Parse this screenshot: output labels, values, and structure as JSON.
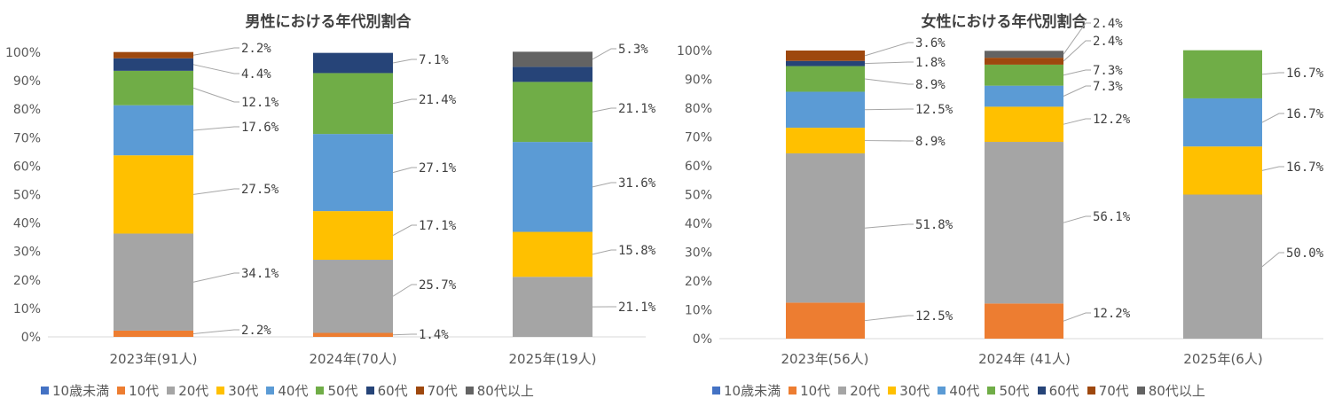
{
  "series_names": [
    "10歳未満",
    "10代",
    "20代",
    "30代",
    "40代",
    "50代",
    "60代",
    "70代",
    "80代以上"
  ],
  "colors": [
    "#4472C4",
    "#ED7D31",
    "#A5A5A5",
    "#FFC000",
    "#5B9BD5",
    "#70AD47",
    "#264478",
    "#9E480E",
    "#636363"
  ],
  "chart_data": [
    {
      "type": "bar",
      "stacked": true,
      "title": "男性における年代別割合",
      "categories": [
        "2023年(91人)",
        "2024年(70人)",
        "2025年(19人)"
      ],
      "ylim": [
        0,
        100
      ],
      "y_ticks": [
        "0%",
        "10%",
        "20%",
        "30%",
        "40%",
        "50%",
        "60%",
        "70%",
        "80%",
        "90%",
        "100%"
      ],
      "gridlines": false,
      "legend": "bottom",
      "series": [
        {
          "name": "10歳未満",
          "values": [
            0,
            0,
            0
          ],
          "labels": [
            "",
            "",
            ""
          ]
        },
        {
          "name": "10代",
          "values": [
            2.2,
            1.4,
            0
          ],
          "labels": [
            "2.2%",
            "1.4%",
            ""
          ]
        },
        {
          "name": "20代",
          "values": [
            34.1,
            25.7,
            21.1
          ],
          "labels": [
            "34.1%",
            "25.7%",
            "21.1%"
          ]
        },
        {
          "name": "30代",
          "values": [
            27.5,
            17.1,
            15.8
          ],
          "labels": [
            "27.5%",
            "17.1%",
            "15.8%"
          ]
        },
        {
          "name": "40代",
          "values": [
            17.6,
            27.1,
            31.6
          ],
          "labels": [
            "17.6%",
            "27.1%",
            "31.6%"
          ]
        },
        {
          "name": "50代",
          "values": [
            12.1,
            21.4,
            21.1
          ],
          "labels": [
            "12.1%",
            "21.4%",
            "21.1%"
          ]
        },
        {
          "name": "60代",
          "values": [
            4.4,
            7.1,
            5.3
          ],
          "labels": [
            "4.4%",
            "7.1%",
            ""
          ]
        },
        {
          "name": "70代",
          "values": [
            2.2,
            0,
            0
          ],
          "labels": [
            "2.2%",
            "",
            ""
          ]
        },
        {
          "name": "80代以上",
          "values": [
            0,
            0,
            5.3
          ],
          "labels": [
            "",
            "",
            "5.3%"
          ]
        }
      ]
    },
    {
      "type": "bar",
      "stacked": true,
      "title": "女性における年代別割合",
      "categories": [
        "2023年(56人)",
        "2024年 (41人)",
        "2025年(6人)"
      ],
      "ylim": [
        0,
        100
      ],
      "y_ticks": [
        "0%",
        "10%",
        "20%",
        "30%",
        "40%",
        "50%",
        "60%",
        "70%",
        "80%",
        "90%",
        "100%"
      ],
      "gridlines": false,
      "legend": "bottom",
      "series": [
        {
          "name": "10歳未満",
          "values": [
            0,
            0,
            0
          ],
          "labels": [
            "",
            "",
            ""
          ]
        },
        {
          "name": "10代",
          "values": [
            12.5,
            12.2,
            0
          ],
          "labels": [
            "12.5%",
            "12.2%",
            ""
          ]
        },
        {
          "name": "20代",
          "values": [
            51.8,
            56.1,
            50.0
          ],
          "labels": [
            "51.8%",
            "56.1%",
            "50.0%"
          ]
        },
        {
          "name": "30代",
          "values": [
            8.9,
            12.2,
            16.7
          ],
          "labels": [
            "8.9%",
            "12.2%",
            "16.7%"
          ]
        },
        {
          "name": "40代",
          "values": [
            12.5,
            7.3,
            16.7
          ],
          "labels": [
            "12.5%",
            "7.3%",
            "16.7%"
          ]
        },
        {
          "name": "50代",
          "values": [
            8.9,
            7.3,
            16.7
          ],
          "labels": [
            "8.9%",
            "7.3%",
            "16.7%"
          ]
        },
        {
          "name": "60代",
          "values": [
            1.8,
            0,
            0
          ],
          "labels": [
            "1.8%",
            "",
            ""
          ]
        },
        {
          "name": "70代",
          "values": [
            3.6,
            2.4,
            0
          ],
          "labels": [
            "3.6%",
            "2.4%",
            ""
          ]
        },
        {
          "name": "80代以上",
          "values": [
            0,
            2.4,
            0
          ],
          "labels": [
            "",
            "2.4%",
            ""
          ]
        }
      ]
    }
  ]
}
